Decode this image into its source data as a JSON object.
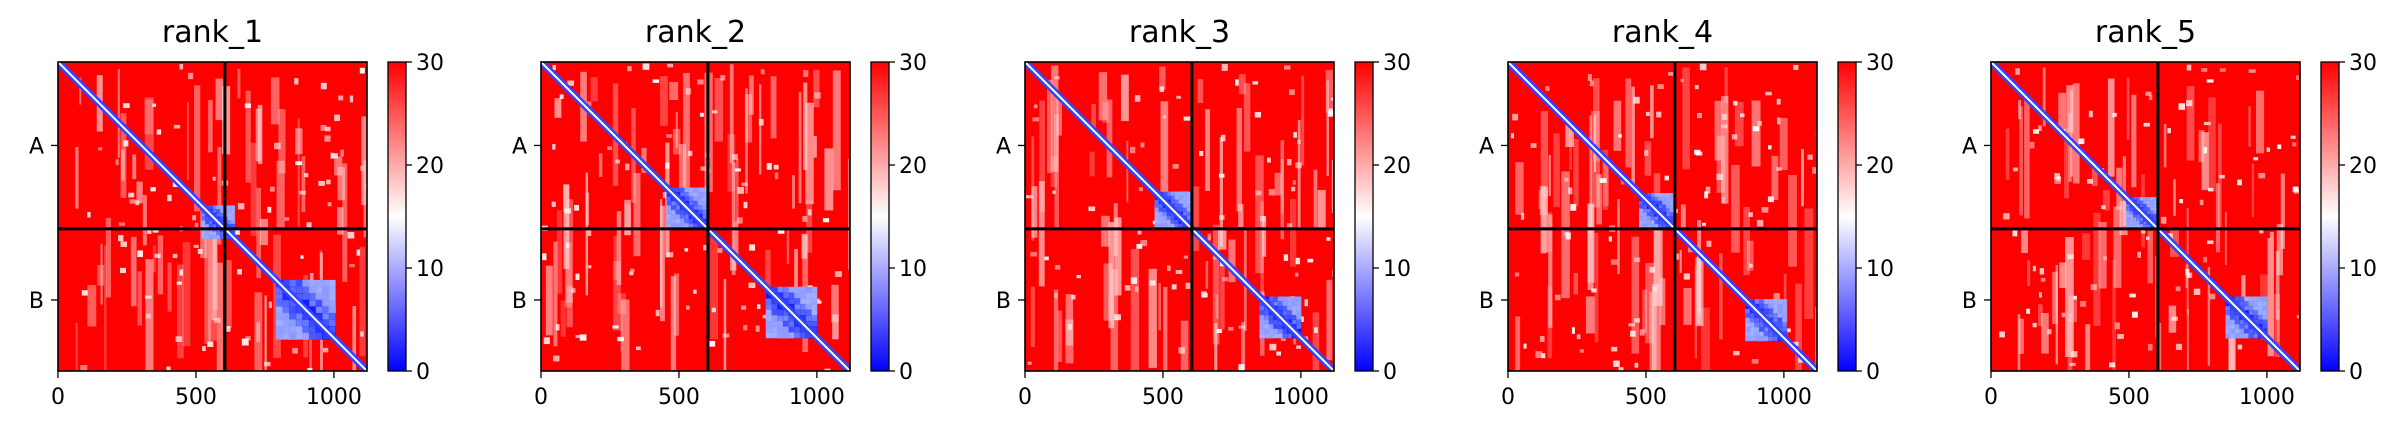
{
  "chart_data": [
    {
      "type": "heatmap",
      "title": "rank_1",
      "chains": [
        "A",
        "B"
      ],
      "chain_boundary": 605,
      "x_ticks": [
        "0",
        "500",
        "1000"
      ],
      "xlim": [
        0,
        1120
      ],
      "ylim": [
        0,
        1120
      ],
      "colorbar": {
        "ticks": [
          "0",
          "10",
          "20",
          "30"
        ],
        "range": [
          0,
          30
        ],
        "colormap": [
          "#0000ff",
          "#ffffff",
          "#ff0000"
        ]
      },
      "blocks": [
        [
          520,
          640
        ],
        [
          790,
          1005
        ]
      ],
      "seed": 11
    },
    {
      "type": "heatmap",
      "title": "rank_2",
      "chains": [
        "A",
        "B"
      ],
      "chain_boundary": 605,
      "x_ticks": [
        "0",
        "500",
        "1000"
      ],
      "xlim": [
        0,
        1120
      ],
      "ylim": [
        0,
        1120
      ],
      "colorbar": {
        "ticks": [
          "0",
          "10",
          "20",
          "30"
        ],
        "range": [
          0,
          30
        ],
        "colormap": [
          "#0000ff",
          "#ffffff",
          "#ff0000"
        ]
      },
      "blocks": [
        [
          455,
          600
        ],
        [
          815,
          1000
        ]
      ],
      "seed": 23
    },
    {
      "type": "heatmap",
      "title": "rank_3",
      "chains": [
        "A",
        "B"
      ],
      "chain_boundary": 605,
      "x_ticks": [
        "0",
        "500",
        "1000"
      ],
      "xlim": [
        0,
        1120
      ],
      "ylim": [
        0,
        1120
      ],
      "colorbar": {
        "ticks": [
          "0",
          "10",
          "20",
          "30"
        ],
        "range": [
          0,
          30
        ],
        "colormap": [
          "#0000ff",
          "#ffffff",
          "#ff0000"
        ]
      },
      "blocks": [
        [
          470,
          600
        ],
        [
          850,
          1000
        ]
      ],
      "seed": 37
    },
    {
      "type": "heatmap",
      "title": "rank_4",
      "chains": [
        "A",
        "B"
      ],
      "chain_boundary": 605,
      "x_ticks": [
        "0",
        "500",
        "1000"
      ],
      "xlim": [
        0,
        1120
      ],
      "ylim": [
        0,
        1120
      ],
      "colorbar": {
        "ticks": [
          "0",
          "10",
          "20",
          "30"
        ],
        "range": [
          0,
          30
        ],
        "colormap": [
          "#0000ff",
          "#ffffff",
          "#ff0000"
        ]
      },
      "blocks": [
        [
          475,
          600
        ],
        [
          860,
          1010
        ]
      ],
      "seed": 41
    },
    {
      "type": "heatmap",
      "title": "rank_5",
      "chains": [
        "A",
        "B"
      ],
      "chain_boundary": 605,
      "x_ticks": [
        "0",
        "500",
        "1000"
      ],
      "xlim": [
        0,
        1120
      ],
      "ylim": [
        0,
        1120
      ],
      "colorbar": {
        "ticks": [
          "0",
          "10",
          "20",
          "30"
        ],
        "range": [
          0,
          30
        ],
        "colormap": [
          "#0000ff",
          "#ffffff",
          "#ff0000"
        ]
      },
      "blocks": [
        [
          490,
          600
        ],
        [
          850,
          1000
        ]
      ],
      "seed": 53
    }
  ]
}
